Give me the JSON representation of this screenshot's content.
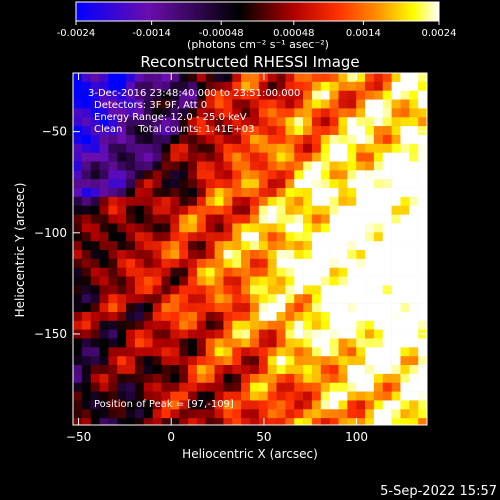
{
  "colorbar": {
    "ticks": [
      "-0.0024",
      "-0.0014",
      "-0.00048",
      "0.00048",
      "0.0014",
      "0.0024"
    ],
    "tick_values": [
      -0.0024,
      -0.0014,
      -0.00048,
      0.00048,
      0.0014,
      0.0024
    ],
    "range": [
      -0.0024,
      0.0024
    ],
    "units": "(photons cm⁻² s⁻¹ asec⁻²)"
  },
  "chart_data": {
    "type": "heatmap",
    "title": "Reconstructed RHESSI Image",
    "xlabel": "Heliocentric X (arcsec)",
    "ylabel": "Heliocentric Y (arcsec)",
    "xlim": [
      -53,
      138
    ],
    "ylim": [
      -195,
      -21
    ],
    "x_ticks": [
      -50,
      0,
      50,
      100
    ],
    "y_ticks": [
      -50,
      -100,
      -150
    ],
    "annotations": [
      "3-Dec-2016 23:48:40.000 to 23:51:00.000",
      "Detectors: 3F 9F, Att 0",
      "Energy Range: 12.0 - 25.0 keV",
      "Clean     Total counts: 1.41E+03"
    ],
    "peak_label": "Position of Peak = [97,-109]",
    "peak_position": [
      97,
      -109
    ],
    "colormap": [
      "#0000ff",
      "#6a0dad",
      "#000000",
      "#b00000",
      "#ff3000",
      "#ff9000",
      "#ffff00",
      "#ffffff"
    ]
  },
  "footer": {
    "timestamp": "5-Sep-2022 15:57"
  }
}
